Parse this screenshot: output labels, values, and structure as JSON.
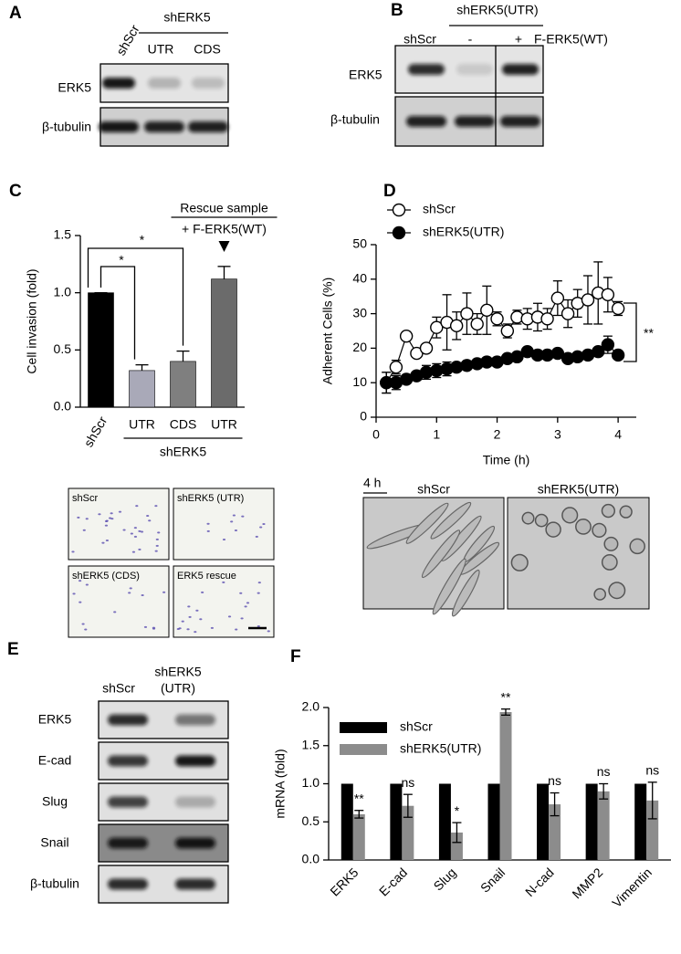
{
  "panels": {
    "A": {
      "label": "A",
      "lanes": [
        "shScr",
        "UTR",
        "CDS"
      ],
      "group": "shERK5",
      "rows": [
        "ERK5",
        "β-tubulin"
      ]
    },
    "B": {
      "label": "B",
      "group": "shERK5(UTR)",
      "lanes": [
        "shScr",
        "-",
        "+"
      ],
      "construct": "F-ERK5(WT)",
      "rows": [
        "ERK5",
        "β-tubulin"
      ]
    },
    "C": {
      "label": "C",
      "images": [
        "shScr",
        "shERK5 (UTR)",
        "shERK5 (CDS)",
        "ERK5 rescue"
      ]
    },
    "D": {
      "label": "D",
      "time_label": "4 h",
      "images": [
        "shScr",
        "shERK5(UTR)"
      ]
    },
    "E": {
      "label": "E",
      "lanes": [
        "shScr",
        [
          "shERK5",
          "(UTR)"
        ]
      ],
      "rows": [
        "ERK5",
        "E-cad",
        "Slug",
        "Snail",
        "β-tubulin"
      ]
    },
    "F": {
      "label": "F"
    }
  },
  "chart_data": [
    {
      "type": "bar",
      "ylabel": "Cell invasion (fold)",
      "categories": [
        "shScr",
        "UTR",
        "CDS",
        "UTR"
      ],
      "values": [
        1.0,
        0.32,
        0.4,
        1.12
      ],
      "errors": [
        0,
        0.05,
        0.09,
        0.11
      ],
      "colors": [
        "#000000",
        "#a9a9b8",
        "#7f7f7f",
        "#6b6b6b"
      ],
      "ylim": [
        0,
        1.5
      ],
      "yticks": [
        {
          "value": 0,
          "label": "0.0"
        },
        0.5,
        {
          "value": 1,
          "label": "1.0"
        },
        1.5
      ],
      "group_label": "shERK5",
      "annotations": [
        "Rescue sample",
        "+ F-ERK5(WT)"
      ],
      "significance": [
        "*",
        "*"
      ]
    },
    {
      "type": "line",
      "xlabel": "Time (h)",
      "ylabel": "Adherent Cells (%)",
      "x": [
        0.17,
        0.33,
        0.5,
        0.67,
        0.83,
        1,
        1.17,
        1.33,
        1.5,
        1.67,
        1.83,
        2,
        2.17,
        2.33,
        2.5,
        2.67,
        2.83,
        3,
        3.17,
        3.33,
        3.5,
        3.67,
        3.83,
        4
      ],
      "series": [
        {
          "name": "shScr",
          "color": "#ffffff",
          "values": [
            10,
            14.5,
            23.5,
            18.5,
            20,
            26,
            27.5,
            26.5,
            30,
            27,
            31,
            28.5,
            25,
            29,
            28.5,
            29,
            28.5,
            34.5,
            30,
            33,
            34,
            36,
            35.5,
            31.5
          ],
          "errors": [
            3,
            2,
            0,
            1,
            0,
            3,
            8,
            4,
            6,
            3,
            7,
            2,
            2,
            2,
            3,
            4,
            3,
            5,
            4,
            4,
            7,
            9,
            5,
            2
          ]
        },
        {
          "name": "shERK5(UTR)",
          "color": "#000000",
          "values": [
            10,
            10,
            11,
            12,
            13,
            13.5,
            14,
            14.5,
            15,
            15.5,
            16,
            16,
            17,
            17.5,
            19,
            18,
            18,
            18.5,
            17,
            17.5,
            18,
            19,
            21,
            18
          ],
          "errors": [
            3,
            2,
            1,
            1,
            2,
            2,
            2,
            1,
            1,
            1,
            1,
            1,
            1,
            1,
            1,
            1,
            1,
            1,
            1,
            1,
            1,
            1,
            2.5,
            1
          ]
        }
      ],
      "xlim": [
        0,
        4.3
      ],
      "xticks": [
        0,
        1,
        2,
        3,
        4
      ],
      "ylim": [
        0,
        50
      ],
      "yticks": [
        0,
        10,
        20,
        30,
        40,
        50
      ],
      "legend": "upper left",
      "significance": "**"
    },
    {
      "type": "bar",
      "ylabel": "mRNA (fold)",
      "categories": [
        "ERK5",
        "E-cad",
        "Slug",
        "Snail",
        "N-cad",
        "MMP2",
        "Vimentin"
      ],
      "series": [
        {
          "name": "shScr",
          "color": "#000000",
          "values": [
            1,
            1,
            1,
            1,
            1,
            1,
            1
          ]
        },
        {
          "name": "shERK5(UTR)",
          "color": "#8c8c8c",
          "values": [
            0.6,
            0.71,
            0.36,
            1.94,
            0.73,
            0.9,
            0.78
          ],
          "errors": [
            0.05,
            0.15,
            0.13,
            0.04,
            0.15,
            0.1,
            0.24
          ]
        }
      ],
      "ylim": [
        0,
        2
      ],
      "yticks": [
        {
          "value": 0,
          "label": "0.0"
        },
        0.5,
        {
          "value": 1,
          "label": "1.0"
        },
        1.5,
        {
          "value": 2,
          "label": "2.0"
        }
      ],
      "legend": "upper left",
      "significance": [
        "**",
        "ns",
        "*",
        "**",
        "ns",
        "ns",
        "ns"
      ]
    }
  ]
}
